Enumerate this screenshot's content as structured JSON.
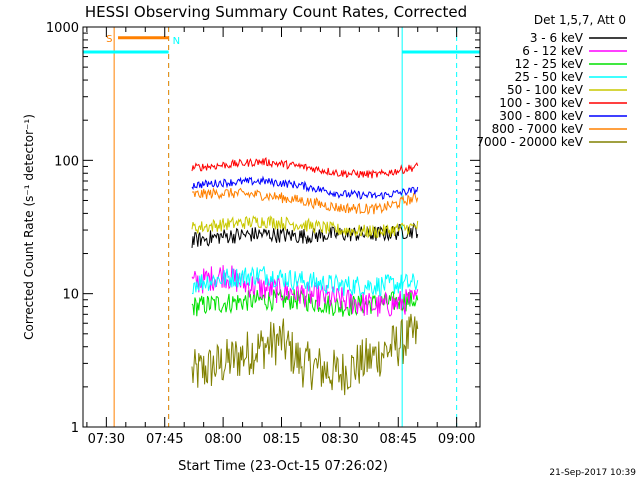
{
  "chart_data": {
    "type": "line",
    "title": "HESSI Observing Summary Count Rates, Corrected",
    "ylabel": "Corrected Count Rate (s⁻¹ detector⁻¹)",
    "xlabel": "Start Time (23-Oct-15 07:26:02)",
    "yscale": "log",
    "ylim": [
      1,
      1000
    ],
    "xlim": [
      "07:24",
      "09:06"
    ],
    "xticks": [
      "07:30",
      "07:45",
      "08:00",
      "08:15",
      "08:30",
      "08:45",
      "09:00"
    ],
    "yticks": [
      "1",
      "10",
      "100",
      "1000"
    ],
    "legend_position": "top-right",
    "legend_title": "Det 1,5,7, Att 0",
    "timestamp": "21-Sep-2017 10:39",
    "series": [
      {
        "name": "3 - 6 keV",
        "color": "#000000",
        "x": [
          "07:52",
          "08:00",
          "08:10",
          "08:20",
          "08:30",
          "08:40",
          "08:50"
        ],
        "values": [
          25,
          27,
          28,
          27,
          28,
          28,
          30
        ]
      },
      {
        "name": "6 - 12 keV",
        "color": "#ff00ff",
        "x": [
          "07:52",
          "07:55",
          "08:00",
          "08:05",
          "08:10",
          "08:20",
          "08:30",
          "08:40",
          "08:50"
        ],
        "values": [
          12,
          12.5,
          14,
          12,
          11,
          10,
          9,
          8,
          9
        ]
      },
      {
        "name": "12 - 25 keV",
        "color": "#00e000",
        "x": [
          "07:52",
          "08:00",
          "08:10",
          "08:20",
          "08:30",
          "08:40",
          "08:50"
        ],
        "values": [
          8,
          8.5,
          9,
          9,
          8,
          8.5,
          9
        ]
      },
      {
        "name": "25 - 50 keV",
        "color": "#00ffff",
        "x": [
          "07:52",
          "08:00",
          "08:10",
          "08:20",
          "08:30",
          "08:40",
          "08:50"
        ],
        "values": [
          12,
          13,
          14,
          12.5,
          11.5,
          11.5,
          12
        ]
      },
      {
        "name": "50 - 100 keV",
        "color": "#c8c800",
        "x": [
          "07:52",
          "08:00",
          "08:10",
          "08:20",
          "08:30",
          "08:40",
          "08:50"
        ],
        "values": [
          31,
          33,
          35,
          33,
          30,
          29,
          32
        ]
      },
      {
        "name": "100 - 300 keV",
        "color": "#ff0000",
        "x": [
          "07:52",
          "08:00",
          "08:10",
          "08:20",
          "08:30",
          "08:40",
          "08:50"
        ],
        "values": [
          88,
          92,
          98,
          90,
          80,
          78,
          90
        ]
      },
      {
        "name": "300 - 800 keV",
        "color": "#0000ff",
        "x": [
          "07:52",
          "08:00",
          "08:10",
          "08:20",
          "08:30",
          "08:40",
          "08:50"
        ],
        "values": [
          65,
          68,
          70,
          65,
          56,
          54,
          60
        ]
      },
      {
        "name": "800 - 7000 keV",
        "color": "#ff8000",
        "x": [
          "07:52",
          "08:00",
          "08:10",
          "08:20",
          "08:30",
          "08:40",
          "08:50"
        ],
        "values": [
          55,
          57,
          55,
          50,
          44,
          43,
          53
        ]
      },
      {
        "name": "7000 - 20000 keV",
        "color": "#808000",
        "x": [
          "07:52",
          "08:00",
          "08:10",
          "08:15",
          "08:20",
          "08:30",
          "08:40",
          "08:50"
        ],
        "values": [
          2.5,
          3,
          4,
          4.5,
          3,
          2.5,
          3.5,
          5
        ]
      }
    ],
    "annotations": [
      {
        "label": "S",
        "color": "#ff8000",
        "time": "07:32",
        "level": 830
      },
      {
        "label": "N",
        "color": "#00ffff",
        "time": "07:46",
        "level": 800
      }
    ]
  }
}
